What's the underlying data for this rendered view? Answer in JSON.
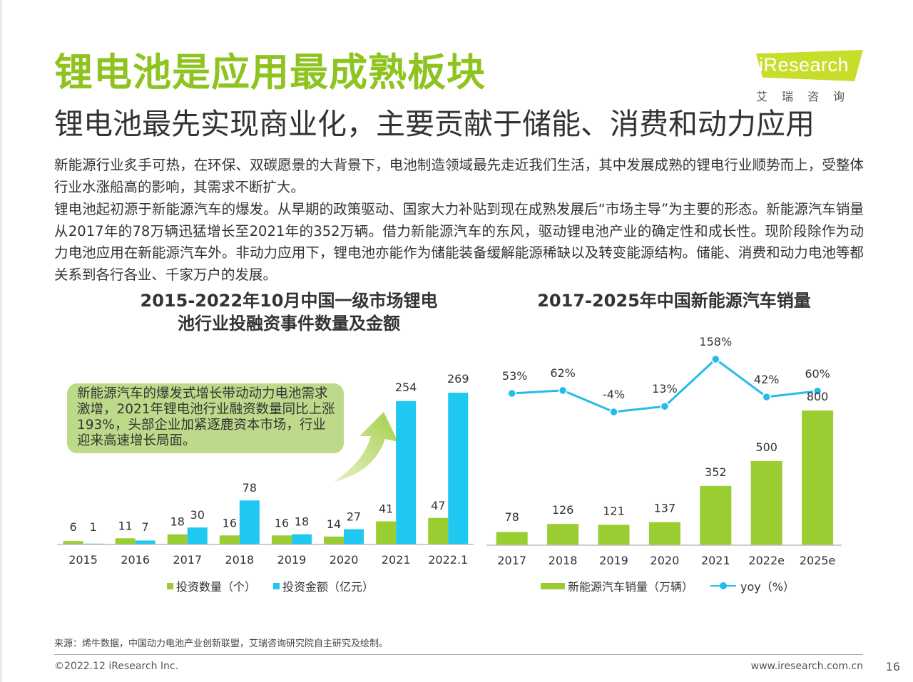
{
  "colors": {
    "green": "#8fc31f",
    "bar_green": "#9acd32",
    "bar_blue": "#1ec8f0",
    "line_blue": "#22bde8",
    "callout": "#bdd98a"
  },
  "header": {
    "title": "锂电池是应用最成熟板块",
    "subtitle": "锂电池最先实现商业化，主要贡献于储能、消费和动力应用"
  },
  "logo": {
    "brand": "iResearch",
    "cn": "艾瑞咨询"
  },
  "body": {
    "para1": "新能源行业炙手可热，在环保、双碳愿景的大背景下，电池制造领域最先走近我们生活，其中发展成熟的锂电行业顺势而上，受整体行业水涨船高的影响，其需求不断扩大。",
    "para2": "锂电池起初源于新能源汽车的爆发。从早期的政策驱动、国家大力补贴到现在成熟发展后“市场主导”为主要的形态。新能源汽车销量从2017年的78万辆迅猛增长至2021年的352万辆。借力新能源汽车的东风，驱动锂电池产业的确定性和成长性。现阶段除作为动力电池应用在新能源汽车外。非动力应用下，锂电池亦能作为储能装备缓解能源稀缺以及转变能源结构。储能、消费和动力电池等都关系到各行各业、千家万户的发展。"
  },
  "callout": "新能源汽车的爆发式增长带动动力电池需求激增，2021年锂电池行业融资数量同比上涨193%，头部企业加紧逐鹿资本市场，行业迎来高速增长局面。",
  "chart_data": [
    {
      "type": "bar",
      "title": "2015-2022年10月中国一级市场锂电池行业投融资事件数量及金额",
      "title_line1": "2015-2022年10月中国一级市场锂电",
      "title_line2": "池行业投融资事件数量及金额",
      "categories": [
        "2015",
        "2016",
        "2017",
        "2018",
        "2019",
        "2020",
        "2021",
        "2022.1"
      ],
      "series": [
        {
          "name": "投资数量（个）",
          "values": [
            6,
            11,
            18,
            16,
            16,
            14,
            41,
            47
          ]
        },
        {
          "name": "投资金额（亿元）",
          "values": [
            1,
            7,
            30,
            78,
            18,
            27,
            254,
            269
          ]
        }
      ],
      "ylim": [
        0,
        280
      ],
      "legend": "bottom"
    },
    {
      "type": "bar",
      "title": "2017-2025年中国新能源汽车销量",
      "categories": [
        "2017",
        "2018",
        "2019",
        "2020",
        "2021",
        "2022e",
        "2025e"
      ],
      "series": [
        {
          "name": "新能源汽车销量（万辆）",
          "values": [
            78,
            126,
            121,
            137,
            352,
            500,
            800
          ]
        }
      ],
      "line_series": {
        "name": "yoy（%）",
        "values": [
          53,
          62,
          -4,
          13,
          158,
          42,
          60
        ],
        "labels": [
          "53%",
          "62%",
          "-4%",
          "13%",
          "158%",
          "42%",
          "60%"
        ]
      },
      "ylim": [
        0,
        850
      ],
      "legend": "bottom"
    }
  ],
  "footer": {
    "source": "来源：烯牛数据，中国动力电池产业创新联盟，艾瑞咨询研究院自主研究及绘制。",
    "copyright": "©2022.12  iResearch Inc.",
    "website": "www.iresearch.com.cn",
    "page": "16"
  }
}
